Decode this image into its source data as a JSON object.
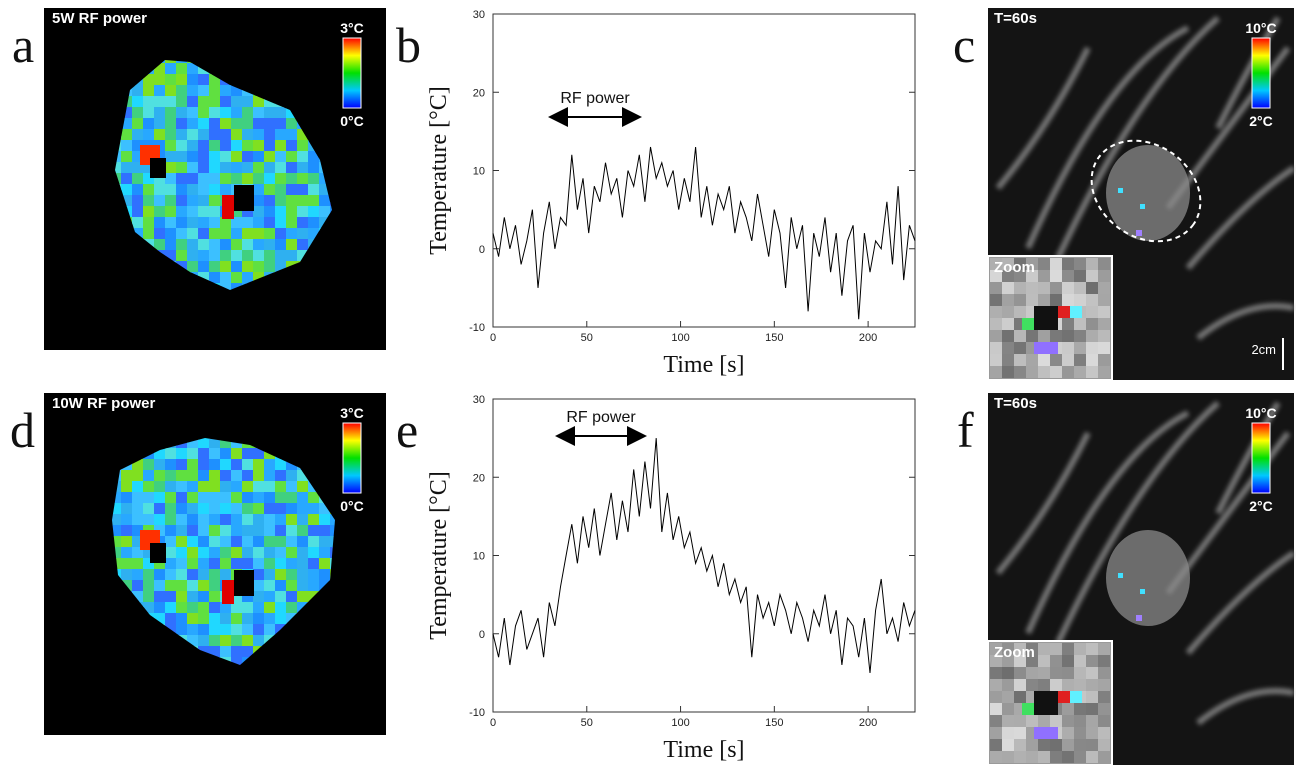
{
  "panels": [
    {
      "letter": "a",
      "label": "5W RF power",
      "scale_max": "3°C",
      "scale_min": "0°C"
    },
    {
      "letter": "b"
    },
    {
      "letter": "c",
      "label": "T=60s",
      "scale_max": "10°C",
      "scale_min": "2°C",
      "inset": "Zoom",
      "scale_bar": "2cm"
    },
    {
      "letter": "d",
      "label": "10W RF power",
      "scale_max": "3°C",
      "scale_min": "0°C"
    },
    {
      "letter": "e"
    },
    {
      "letter": "f",
      "label": "T=60s",
      "scale_max": "10°C",
      "scale_min": "2°C",
      "inset": "Zoom"
    }
  ],
  "chart_data": [
    {
      "type": "line",
      "xlabel": "Time [s]",
      "ylabel": "Temperature [°C]",
      "annotation": "RF power",
      "color": "#000000",
      "xlim": [
        0,
        225
      ],
      "ylim": [
        -10,
        30
      ],
      "xticks": [
        0,
        50,
        100,
        150,
        200
      ],
      "yticks": [
        -10,
        0,
        10,
        20,
        30
      ],
      "x": [
        0,
        3,
        6,
        9,
        12,
        15,
        18,
        21,
        24,
        27,
        30,
        33,
        36,
        39,
        42,
        45,
        48,
        51,
        54,
        57,
        60,
        63,
        66,
        69,
        72,
        75,
        78,
        81,
        84,
        87,
        90,
        93,
        96,
        99,
        102,
        105,
        108,
        111,
        114,
        117,
        120,
        123,
        126,
        129,
        132,
        135,
        138,
        141,
        144,
        147,
        150,
        153,
        156,
        159,
        162,
        165,
        168,
        171,
        174,
        177,
        180,
        183,
        186,
        189,
        192,
        195,
        198,
        201,
        204,
        207,
        210,
        213,
        216,
        219,
        222,
        225
      ],
      "values": [
        2,
        -1,
        4,
        0,
        3,
        -2,
        1,
        5,
        -5,
        2,
        6,
        0,
        4,
        3,
        12,
        5,
        9,
        2,
        8,
        6,
        11,
        7,
        9,
        4,
        10,
        8,
        12,
        6,
        13,
        9,
        11,
        8,
        10,
        5,
        9,
        6,
        13,
        4,
        8,
        3,
        7,
        5,
        8,
        2,
        6,
        4,
        1,
        7,
        3,
        -1,
        5,
        2,
        -5,
        4,
        0,
        3,
        -8,
        2,
        -1,
        4,
        -3,
        2,
        -6,
        1,
        3,
        -9,
        2,
        -3,
        1,
        0,
        6,
        -2,
        8,
        -4,
        3,
        1
      ]
    },
    {
      "type": "line",
      "xlabel": "Time [s]",
      "ylabel": "Temperature [°C]",
      "annotation": "RF power",
      "color": "#000000",
      "xlim": [
        0,
        225
      ],
      "ylim": [
        -10,
        30
      ],
      "xticks": [
        0,
        50,
        100,
        150,
        200
      ],
      "yticks": [
        -10,
        0,
        10,
        20,
        30
      ],
      "x": [
        0,
        3,
        6,
        9,
        12,
        15,
        18,
        21,
        24,
        27,
        30,
        33,
        36,
        39,
        42,
        45,
        48,
        51,
        54,
        57,
        60,
        63,
        66,
        69,
        72,
        75,
        78,
        81,
        84,
        87,
        90,
        93,
        96,
        99,
        102,
        105,
        108,
        111,
        114,
        117,
        120,
        123,
        126,
        129,
        132,
        135,
        138,
        141,
        144,
        147,
        150,
        153,
        156,
        159,
        162,
        165,
        168,
        171,
        174,
        177,
        180,
        183,
        186,
        189,
        192,
        195,
        198,
        201,
        204,
        207,
        210,
        213,
        216,
        219,
        222,
        225
      ],
      "values": [
        0,
        -3,
        2,
        -4,
        1,
        3,
        -2,
        0,
        2,
        -3,
        4,
        1,
        6,
        10,
        14,
        9,
        15,
        11,
        16,
        10,
        14,
        18,
        12,
        17,
        13,
        21,
        15,
        22,
        16,
        25,
        13,
        18,
        12,
        15,
        11,
        13,
        9,
        11,
        8,
        10,
        6,
        9,
        5,
        7,
        4,
        6,
        -3,
        5,
        2,
        4,
        1,
        5,
        3,
        0,
        4,
        2,
        -1,
        3,
        1,
        5,
        0,
        3,
        -4,
        2,
        1,
        -3,
        2,
        -5,
        3,
        7,
        0,
        2,
        -1,
        4,
        1,
        3
      ]
    }
  ]
}
